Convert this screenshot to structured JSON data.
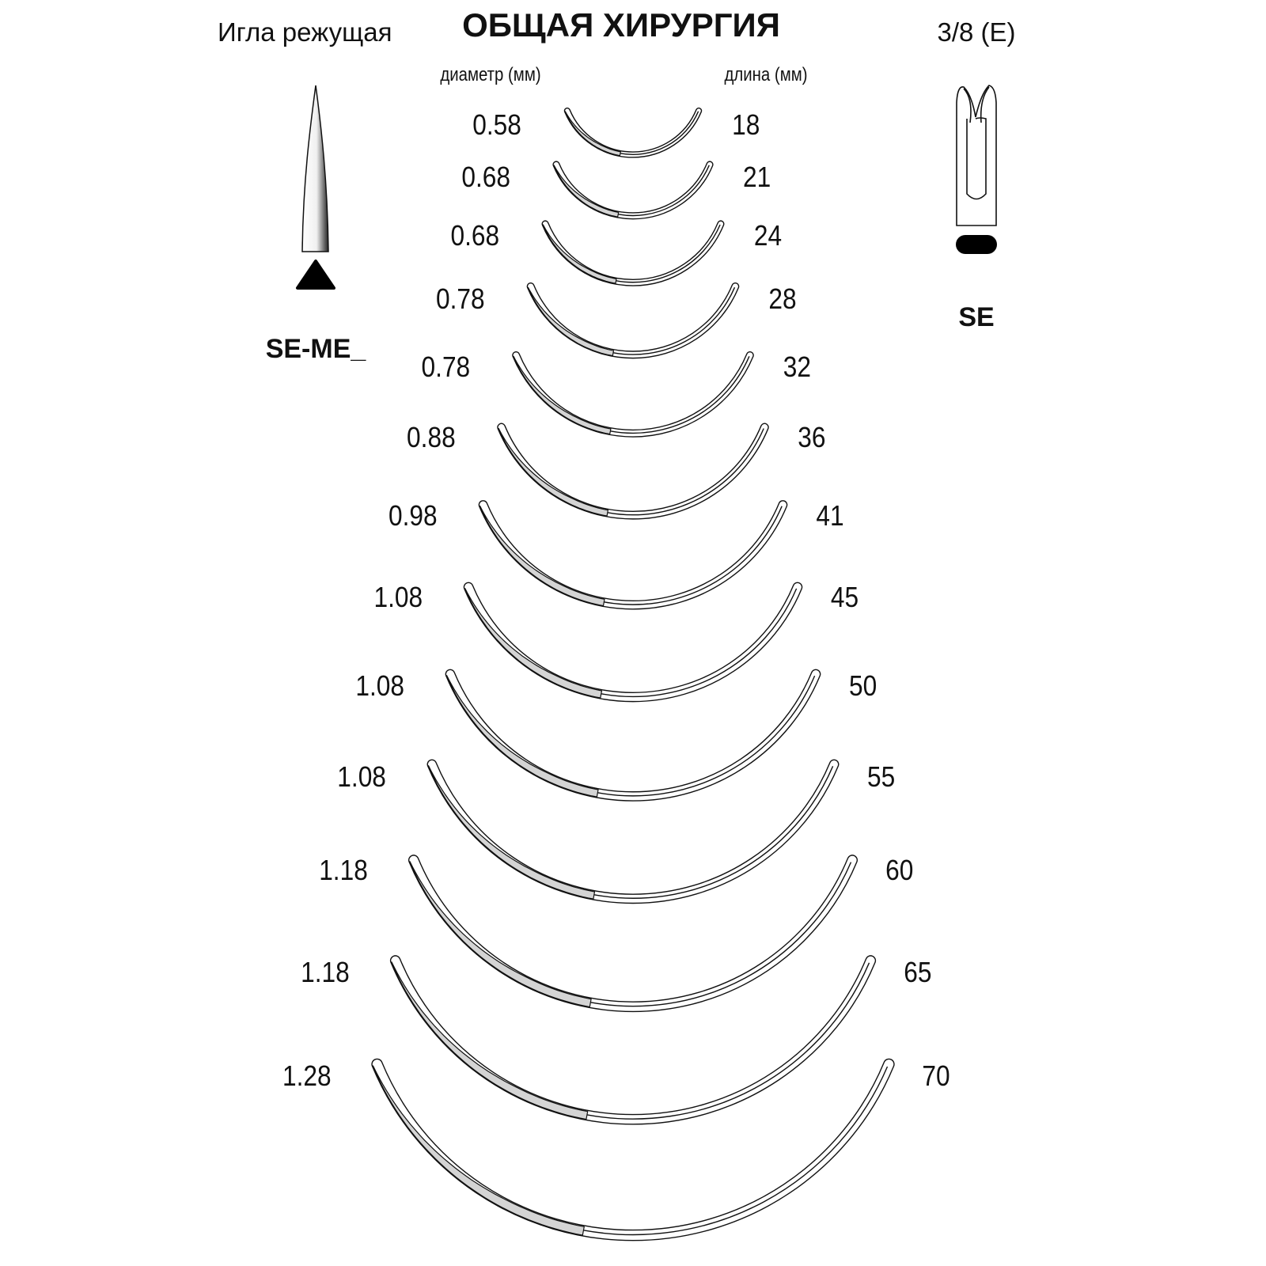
{
  "header": {
    "needle_type": "Игла режущая",
    "title": "ОБЩАЯ ХИРУРГИЯ",
    "curvature": "3/8 (E)",
    "diameter_label": "диаметр (мм)",
    "length_label": "длина (мм)"
  },
  "point": {
    "code": "SE-ME_",
    "icon": "cutting-point-icon",
    "cross_section": "triangle-icon"
  },
  "end": {
    "code": "SE",
    "icon": "split-eye-icon",
    "cross_section": "oval-icon"
  },
  "colors": {
    "line": "#111111",
    "cutting_edge_fill": "#d4d4d4"
  },
  "needles": [
    {
      "diameter": "0.58",
      "length": "18"
    },
    {
      "diameter": "0.68",
      "length": "21"
    },
    {
      "diameter": "0.68",
      "length": "24"
    },
    {
      "diameter": "0.78",
      "length": "28"
    },
    {
      "diameter": "0.78",
      "length": "32"
    },
    {
      "diameter": "0.88",
      "length": "36"
    },
    {
      "diameter": "0.98",
      "length": "41"
    },
    {
      "diameter": "1.08",
      "length": "45"
    },
    {
      "diameter": "1.08",
      "length": "50"
    },
    {
      "diameter": "1.08",
      "length": "55"
    },
    {
      "diameter": "1.18",
      "length": "60"
    },
    {
      "diameter": "1.18",
      "length": "65"
    },
    {
      "diameter": "1.28",
      "length": "70"
    }
  ]
}
